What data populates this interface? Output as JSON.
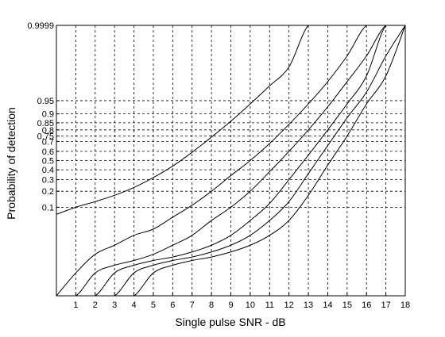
{
  "chart_data": {
    "type": "line",
    "title": "",
    "xlabel": "Single pulse SNR - dB",
    "ylabel": "Probability of detection",
    "xlim": [
      0,
      18
    ],
    "ylim": [
      0,
      0.9999
    ],
    "grid": true,
    "y_scale": "normal-probability",
    "x_ticks": [
      1,
      2,
      3,
      4,
      5,
      6,
      7,
      8,
      9,
      10,
      11,
      12,
      13,
      14,
      15,
      16,
      17,
      18
    ],
    "x_tick_labels": [
      "1",
      "2",
      "3",
      "4",
      "5",
      "6",
      "7",
      "8",
      "9",
      "10",
      "11",
      "12",
      "13",
      "14",
      "15",
      "16",
      "17",
      "18"
    ],
    "y_ticks": [
      0.1,
      0.2,
      0.3,
      0.4,
      0.5,
      0.6,
      0.7,
      0.75,
      0.8,
      0.85,
      0.9,
      0.95,
      0.9999
    ],
    "y_tick_labels": [
      "0.1",
      "0.2",
      "0.3",
      "0.4",
      "0.5",
      "0.6",
      "0.7",
      "0.75",
      "0.8",
      "0.85",
      "0.9",
      "0.95",
      "0.9999"
    ],
    "x": [
      0,
      1,
      2,
      3,
      4,
      5,
      6,
      7,
      8,
      9,
      10,
      11,
      12,
      13,
      14,
      15,
      16,
      17,
      18
    ],
    "series": [
      {
        "values": [
          0.07,
          0.1,
          0.13,
          0.17,
          0.23,
          0.32,
          0.44,
          0.59,
          0.74,
          0.86,
          0.94,
          0.98,
          0.995,
          0.9999,
          0.9999,
          0.9999,
          0.9999,
          0.9999,
          0.9999
        ]
      },
      {
        "values": [
          0.0,
          0.001,
          0.005,
          0.01,
          0.02,
          0.03,
          0.06,
          0.11,
          0.2,
          0.34,
          0.5,
          0.68,
          0.84,
          0.94,
          0.985,
          0.998,
          0.9999,
          0.9999,
          0.9999
        ]
      },
      {
        "values": [
          0.0,
          0.0,
          0.001,
          0.002,
          0.003,
          0.005,
          0.01,
          0.02,
          0.05,
          0.1,
          0.2,
          0.38,
          0.6,
          0.8,
          0.93,
          0.985,
          0.998,
          0.9999,
          0.9999
        ]
      },
      {
        "values": [
          0.0,
          0.0,
          0.0,
          0.001,
          0.002,
          0.003,
          0.004,
          0.006,
          0.01,
          0.02,
          0.05,
          0.12,
          0.3,
          0.56,
          0.8,
          0.94,
          0.99,
          0.9999,
          0.9999
        ]
      },
      {
        "values": [
          0.0,
          0.0,
          0.0,
          0.0,
          0.001,
          0.002,
          0.003,
          0.004,
          0.006,
          0.01,
          0.02,
          0.05,
          0.13,
          0.36,
          0.66,
          0.88,
          0.97,
          0.998,
          0.9999
        ]
      },
      {
        "values": [
          0.0,
          0.0,
          0.0,
          0.0,
          0.0,
          0.001,
          0.002,
          0.003,
          0.004,
          0.006,
          0.01,
          0.02,
          0.05,
          0.17,
          0.45,
          0.75,
          0.94,
          0.99,
          0.9999
        ]
      }
    ]
  }
}
